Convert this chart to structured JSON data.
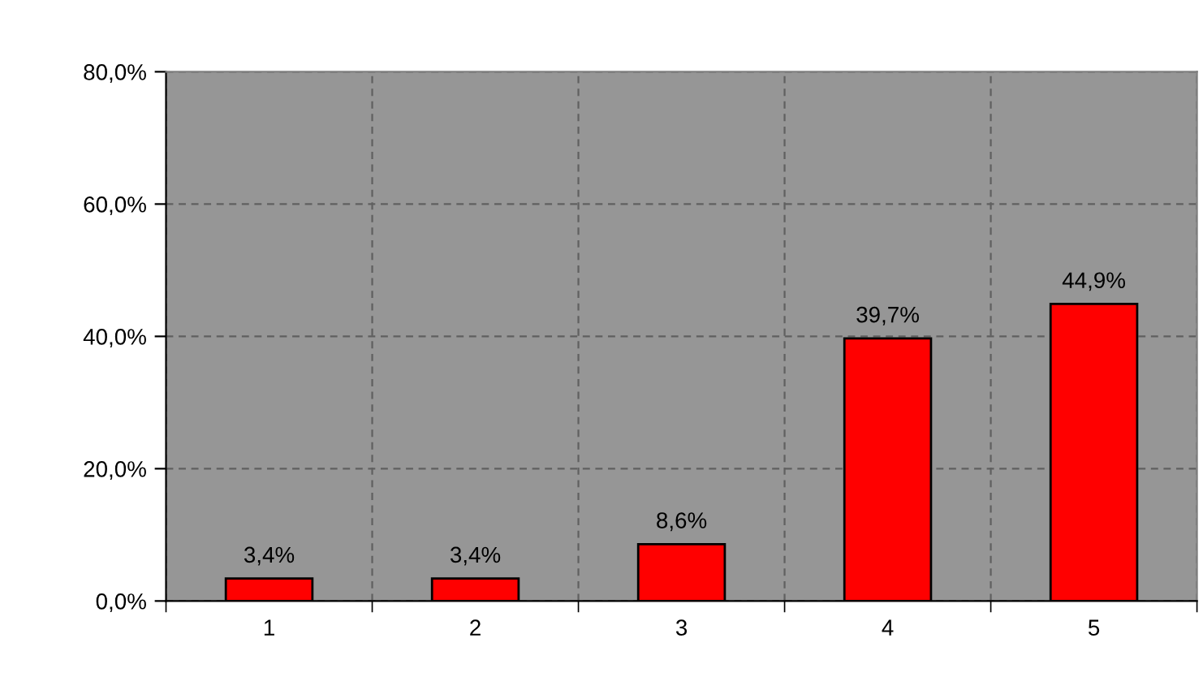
{
  "chart_data": {
    "type": "bar",
    "categories": [
      "1",
      "2",
      "3",
      "4",
      "5"
    ],
    "values": [
      3.4,
      3.4,
      8.6,
      39.7,
      44.9
    ],
    "value_labels": [
      "3,4%",
      "3,4%",
      "8,6%",
      "39,7%",
      "44,9%"
    ],
    "color": "#ff0000",
    "ylim": [
      0,
      80
    ],
    "yticks": [
      {
        "value": 0,
        "label": "0,0%"
      },
      {
        "value": 20,
        "label": "20,0%"
      },
      {
        "value": 40,
        "label": "40,0%"
      },
      {
        "value": 60,
        "label": "60,0%"
      },
      {
        "value": 80,
        "label": "80,0%"
      }
    ],
    "grid": true,
    "legend": false
  }
}
